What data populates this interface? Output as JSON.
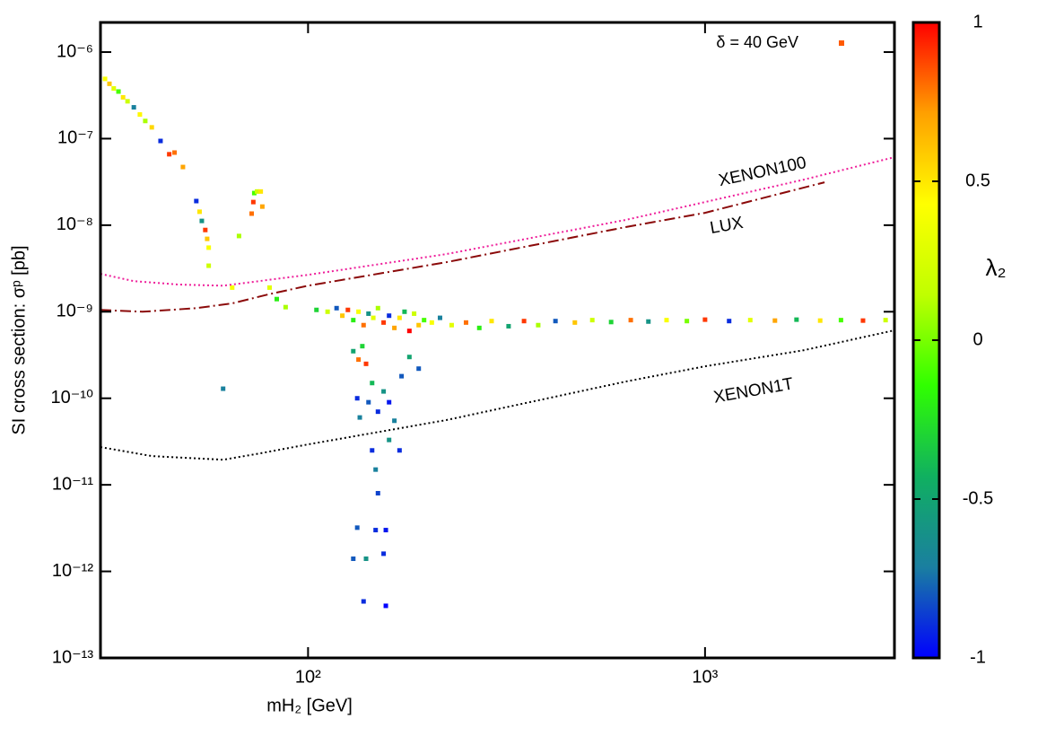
{
  "chart_data": {
    "type": "scatter",
    "xlabel": "mH₂ [GeV]",
    "ylabel": "SI cross section: σᵖ [pb]",
    "xscale": "log",
    "yscale": "log",
    "xlim": [
      30,
      3000
    ],
    "ylim": [
      1e-13,
      2.2e-06
    ],
    "xticks": [
      {
        "value": 100,
        "label": "10²"
      },
      {
        "value": 1000,
        "label": "10³"
      }
    ],
    "yticks": [
      {
        "value": 1e-13,
        "label": "10⁻¹³"
      },
      {
        "value": 1e-12,
        "label": "10⁻¹²"
      },
      {
        "value": 1e-11,
        "label": "10⁻¹¹"
      },
      {
        "value": 1e-10,
        "label": "10⁻¹⁰"
      },
      {
        "value": 1e-09,
        "label": "10⁻⁹"
      },
      {
        "value": 1e-08,
        "label": "10⁻⁸"
      },
      {
        "value": 1e-07,
        "label": "10⁻⁷"
      },
      {
        "value": 1e-06,
        "label": "10⁻⁶"
      }
    ],
    "legend": "top-right",
    "colorbar": {
      "label": "λ₂",
      "zlim": [
        -1,
        1
      ],
      "zticks": [
        -1,
        -0.5,
        0,
        0.5,
        1
      ],
      "colormap": [
        "#0000ff",
        "#1a7fa0",
        "#10b060",
        "#30ff00",
        "#c0ff00",
        "#ffff00",
        "#ffa000",
        "#ff0000"
      ]
    },
    "series": [
      {
        "name": "δ = 40 GeV",
        "mode": "markers",
        "color": "#ff5a00",
        "x": [
          30.8,
          31.6,
          32.4,
          33.3,
          34.2,
          35.1,
          36.4,
          37.7,
          38.9,
          40.4,
          42.5,
          44.7,
          46.1,
          48.4,
          52.3,
          53.3,
          54.0,
          55.1,
          55.7,
          56.2,
          56.2,
          64.4,
          67.0,
          72.1,
          73.2,
          74.4,
          76.0,
          76.7,
          72.8,
          61.1,
          80,
          83.4,
          87.8,
          105,
          112,
          118,
          122,
          126,
          130,
          134,
          138,
          142,
          146,
          150,
          155,
          160,
          165,
          170,
          175,
          180,
          185,
          190,
          196,
          205,
          215,
          230,
          250,
          270,
          290,
          320,
          350,
          380,
          420,
          470,
          520,
          580,
          650,
          720,
          800,
          900,
          1000,
          1150,
          1300,
          1500,
          1700,
          1950,
          2200,
          2500,
          2850,
          130,
          134,
          137,
          140,
          133,
          135,
          142,
          145,
          150,
          155,
          160,
          165,
          172,
          180,
          190,
          145,
          148,
          150,
          148,
          130,
          140,
          155,
          157,
          138,
          157,
          133,
          160,
          170
        ],
        "y": [
          4.9e-07,
          4.3e-07,
          3.8e-07,
          3.5e-07,
          3e-07,
          2.7e-07,
          2.3e-07,
          1.9e-07,
          1.6e-07,
          1.35e-07,
          9.4e-08,
          6.6e-08,
          6.9e-08,
          4.7e-08,
          1.9e-08,
          1.43e-08,
          1.12e-08,
          8.8e-09,
          6.95e-09,
          5.5e-09,
          3.4e-09,
          1.9e-09,
          7.5e-09,
          1.36e-08,
          2.35e-08,
          2.45e-08,
          2.45e-08,
          1.64e-08,
          1.85e-08,
          1.29e-10,
          1.9e-09,
          1.4e-09,
          1.13e-09,
          1.05e-09,
          1e-09,
          1.1e-09,
          9e-10,
          1.05e-09,
          8e-10,
          1e-09,
          7e-10,
          9.5e-10,
          8.5e-10,
          1.1e-09,
          7.5e-10,
          9e-10,
          6.5e-10,
          8.5e-10,
          1e-09,
          6e-10,
          9.5e-10,
          7e-10,
          8e-10,
          7.5e-10,
          8.5e-10,
          7e-10,
          7.5e-10,
          6.5e-10,
          7.8e-10,
          6.8e-10,
          7.8e-10,
          7e-10,
          7.8e-10,
          7.5e-10,
          8e-10,
          7.6e-10,
          8e-10,
          7.7e-10,
          8e-10,
          7.8e-10,
          8.1e-10,
          7.8e-10,
          8e-10,
          7.9e-10,
          8.1e-10,
          7.9e-10,
          8e-10,
          7.9e-10,
          8e-10,
          3.5e-10,
          2.8e-10,
          4e-10,
          2.5e-10,
          1e-10,
          6e-11,
          9e-11,
          1.5e-10,
          7e-11,
          1.2e-10,
          9e-11,
          5.5e-11,
          1.8e-10,
          3e-10,
          2.2e-10,
          2.5e-11,
          1.5e-11,
          8e-12,
          3e-12,
          1.4e-12,
          1.4e-12,
          1.6e-12,
          3e-12,
          4.5e-13,
          4e-13,
          3.2e-12,
          3.3e-11,
          2.5e-11
        ],
        "z": [
          0.4,
          0.6,
          0.3,
          -0.1,
          0.5,
          0.2,
          -0.7,
          0.45,
          0.1,
          0.55,
          -0.9,
          0.9,
          0.8,
          0.7,
          -0.9,
          0.5,
          -0.6,
          0.9,
          0.6,
          0.4,
          0.2,
          0.4,
          0.1,
          0.8,
          -0.1,
          0.2,
          0.5,
          0.7,
          0.9,
          -0.7,
          0.3,
          -0.2,
          0.1,
          -0.3,
          0.2,
          -0.8,
          0.6,
          0.9,
          -0.2,
          0.4,
          0.8,
          -0.6,
          0.3,
          0.1,
          0.9,
          -0.9,
          0.7,
          0.5,
          -0.4,
          1.0,
          0.2,
          0.6,
          -0.1,
          0.4,
          -0.7,
          0.3,
          0.8,
          -0.2,
          0.5,
          -0.5,
          0.9,
          0.1,
          -0.8,
          0.6,
          0.2,
          -0.3,
          0.8,
          -0.6,
          0.4,
          0.0,
          0.9,
          -0.9,
          0.3,
          0.7,
          -0.4,
          0.5,
          -0.1,
          0.9,
          0.2,
          -0.5,
          0.8,
          -0.3,
          0.9,
          -0.9,
          -0.7,
          -0.8,
          -0.4,
          -0.9,
          -0.6,
          -0.95,
          -0.7,
          -0.8,
          -0.5,
          -0.8,
          -0.9,
          -0.7,
          -0.85,
          -0.9,
          -0.8,
          -0.6,
          -0.9,
          -0.95,
          -0.9,
          -1.0,
          -0.8,
          -0.6,
          -0.9
        ]
      },
      {
        "name": "XENON100",
        "mode": "line",
        "dash": "dotted",
        "color": "#ee1e9a",
        "x": [
          30,
          36.4,
          47.1,
          61.1,
          75.2,
          100,
          223,
          631,
          1000,
          1778,
          3000
        ],
        "y": [
          2.74e-09,
          2.26e-09,
          2.06e-09,
          2e-09,
          2.26e-09,
          2.67e-09,
          4.63e-09,
          1.15e-08,
          1.85e-08,
          3.37e-08,
          6.1e-08
        ]
      },
      {
        "name": "LUX",
        "mode": "line",
        "dash": "dashdot",
        "color": "#8b0a0a",
        "x": [
          30,
          38.3,
          52.3,
          64.4,
          79.2,
          100,
          223,
          631,
          1000,
          2000
        ],
        "y": [
          1.05e-09,
          1e-09,
          1.1e-09,
          1.25e-09,
          1.58e-09,
          2e-09,
          3.74e-09,
          9.5e-09,
          1.39e-08,
          3.13e-08
        ]
      },
      {
        "name": "XENON1T",
        "mode": "line",
        "dash": "dotted",
        "color": "#000000",
        "x": [
          30,
          40.4,
          61.1,
          75.2,
          100,
          223,
          631,
          1000,
          1778,
          3000
        ],
        "y": [
          2.73e-11,
          2.15e-11,
          1.95e-11,
          2.3e-11,
          2.93e-11,
          5.6e-11,
          1.56e-10,
          2.34e-10,
          3.6e-10,
          6.1e-10
        ]
      }
    ]
  }
}
